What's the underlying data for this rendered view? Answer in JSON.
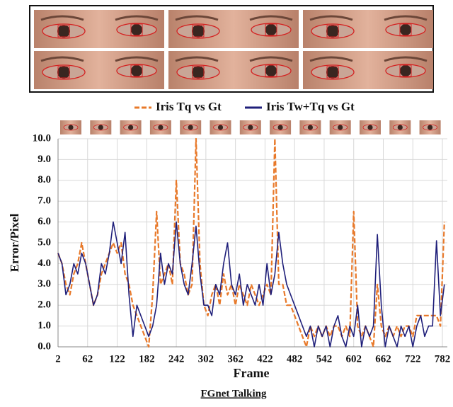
{
  "chart_data": {
    "type": "line",
    "caption": "FGnet Talking",
    "xlabel": "Frame",
    "ylabel": "Error/Pixel",
    "grid": true,
    "xlim": [
      2,
      792
    ],
    "ylim": [
      0,
      10
    ],
    "xticks": [
      2,
      62,
      122,
      182,
      242,
      302,
      362,
      422,
      482,
      542,
      602,
      662,
      722,
      782
    ],
    "yticks": [
      {
        "value": 0,
        "label": "0.0"
      },
      {
        "value": 1,
        "label": "1.0"
      },
      {
        "value": 2,
        "label": "2.0"
      },
      {
        "value": 3,
        "label": "3.0"
      },
      {
        "value": 4,
        "label": "4.0"
      },
      {
        "value": 5,
        "label": "5.0"
      },
      {
        "value": 6,
        "label": "6.0"
      },
      {
        "value": 7,
        "label": "7.0"
      },
      {
        "value": 8,
        "label": "8.0"
      },
      {
        "value": 9,
        "label": "9.0"
      },
      {
        "value": 10,
        "label": "10.0"
      }
    ],
    "x": [
      2,
      10,
      18,
      26,
      34,
      42,
      50,
      58,
      66,
      74,
      82,
      90,
      98,
      106,
      114,
      122,
      130,
      138,
      146,
      154,
      162,
      170,
      178,
      186,
      194,
      202,
      210,
      218,
      226,
      234,
      242,
      250,
      258,
      266,
      274,
      282,
      290,
      298,
      306,
      314,
      322,
      330,
      338,
      346,
      354,
      362,
      370,
      378,
      386,
      394,
      402,
      410,
      418,
      426,
      434,
      442,
      450,
      458,
      466,
      474,
      482,
      490,
      498,
      506,
      514,
      522,
      530,
      538,
      546,
      554,
      562,
      570,
      578,
      586,
      594,
      602,
      610,
      618,
      626,
      634,
      642,
      650,
      658,
      666,
      674,
      682,
      690,
      698,
      706,
      714,
      722,
      730,
      738,
      746,
      754,
      762,
      770,
      778,
      786
    ],
    "series": [
      {
        "name": "Iris Tq vs Gt",
        "color": "#e8792a",
        "dash": "dashed",
        "values": [
          4.5,
          4.0,
          3.0,
          2.5,
          3.5,
          4.0,
          5.0,
          4.0,
          3.0,
          2.0,
          2.5,
          3.5,
          4.0,
          4.5,
          5.0,
          4.5,
          5.0,
          3.5,
          3.0,
          2.0,
          1.5,
          1.0,
          0.5,
          0.0,
          2.5,
          6.5,
          3.0,
          3.5,
          4.0,
          3.0,
          8.0,
          4.0,
          3.5,
          2.5,
          3.0,
          10.0,
          4.0,
          2.0,
          1.5,
          2.5,
          3.0,
          2.0,
          3.5,
          2.5,
          3.0,
          2.0,
          3.0,
          2.5,
          2.0,
          3.0,
          2.5,
          2.0,
          2.5,
          3.0,
          2.5,
          10.0,
          3.0,
          3.0,
          2.0,
          2.0,
          1.5,
          1.0,
          0.5,
          0.0,
          1.0,
          0.5,
          1.0,
          0.5,
          1.0,
          0.5,
          1.0,
          1.0,
          0.5,
          1.0,
          0.5,
          6.5,
          1.0,
          0.5,
          1.0,
          0.5,
          0.0,
          3.0,
          1.0,
          0.5,
          1.0,
          0.5,
          1.0,
          0.5,
          1.0,
          1.0,
          0.5,
          1.5,
          1.5,
          1.5,
          1.5,
          1.5,
          1.5,
          1.0,
          6.0
        ]
      },
      {
        "name": "Iris Tw+Tq vs Gt",
        "color": "#1f1f7a",
        "dash": "solid",
        "values": [
          4.5,
          4.0,
          2.5,
          3.0,
          4.0,
          3.5,
          4.5,
          4.0,
          3.0,
          2.0,
          2.5,
          4.0,
          3.5,
          4.5,
          6.0,
          5.0,
          4.0,
          5.5,
          2.5,
          0.5,
          2.0,
          1.5,
          1.0,
          0.5,
          1.0,
          2.0,
          4.5,
          3.0,
          4.0,
          3.5,
          6.0,
          4.0,
          3.0,
          2.5,
          4.0,
          5.8,
          3.5,
          2.0,
          2.0,
          1.5,
          3.0,
          2.5,
          4.0,
          5.0,
          3.0,
          2.5,
          3.5,
          2.0,
          3.0,
          2.5,
          2.0,
          3.0,
          2.0,
          4.0,
          2.5,
          3.5,
          5.5,
          4.0,
          3.0,
          2.5,
          2.0,
          1.5,
          1.0,
          0.5,
          1.0,
          0.0,
          1.0,
          0.5,
          1.0,
          0.0,
          1.0,
          1.5,
          0.5,
          0.0,
          1.0,
          0.5,
          2.0,
          0.0,
          1.0,
          0.5,
          1.0,
          5.4,
          2.0,
          0.0,
          1.0,
          0.5,
          0.0,
          1.0,
          0.5,
          1.0,
          0.0,
          1.0,
          1.5,
          0.5,
          1.0,
          1.0,
          5.1,
          1.5,
          3.0
        ]
      }
    ]
  }
}
